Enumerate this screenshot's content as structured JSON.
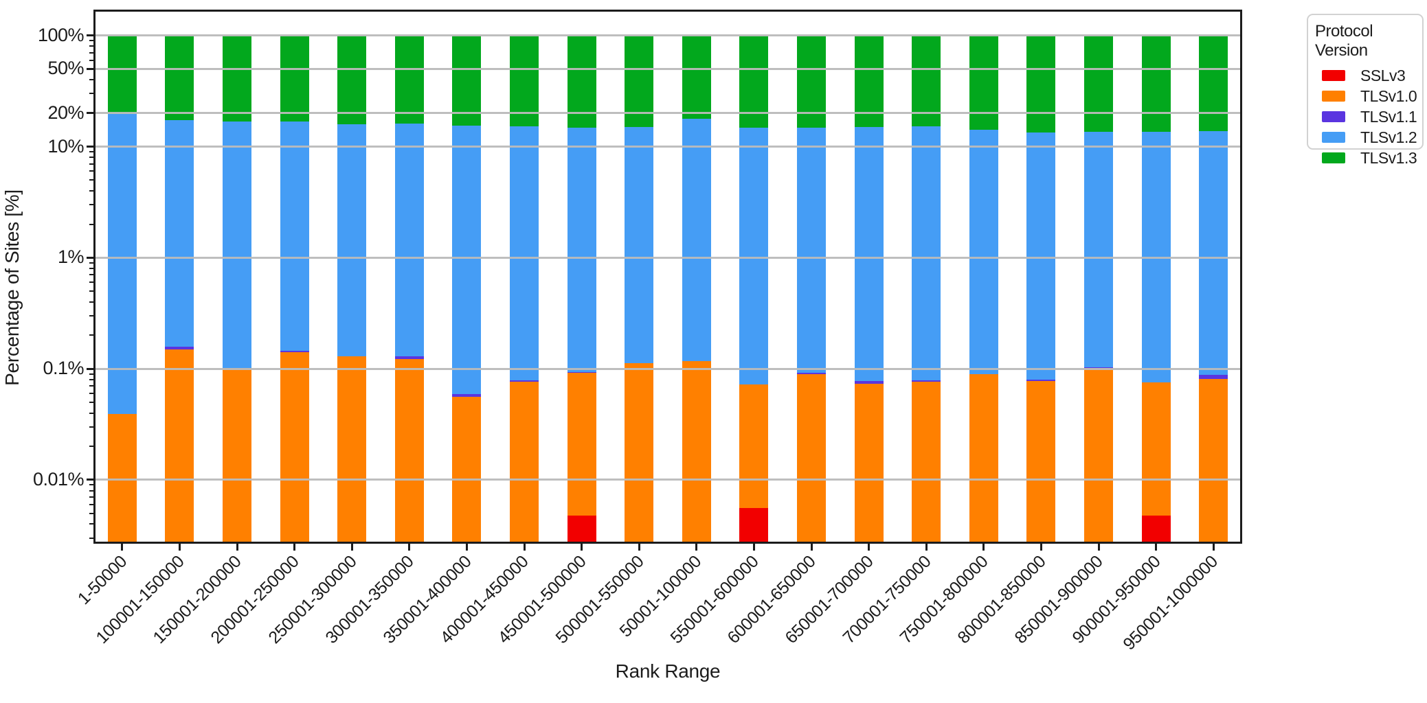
{
  "chart_data": {
    "type": "bar",
    "stacked": true,
    "y_scale": "log",
    "title": "",
    "xlabel": "Rank Range",
    "ylabel": "Percentage of Sites [%]",
    "legend_title": "Protocol Version",
    "legend_position": "outside-upper-right",
    "grid": true,
    "ylim": [
      0.00266,
      171
    ],
    "y_ticks": [
      {
        "label": "100%",
        "value": 100
      },
      {
        "label": "50%",
        "value": 50
      },
      {
        "label": "20%",
        "value": 20
      },
      {
        "label": "10%",
        "value": 10
      },
      {
        "label": "1%",
        "value": 1
      },
      {
        "label": "0.1%",
        "value": 0.1
      },
      {
        "label": "0.01%",
        "value": 0.01
      }
    ],
    "categories": [
      "1-50000",
      "100001-150000",
      "150001-200000",
      "200001-250000",
      "250001-300000",
      "300001-350000",
      "350001-400000",
      "400001-450000",
      "450001-500000",
      "500001-550000",
      "50001-100000",
      "550001-600000",
      "600001-650000",
      "650001-700000",
      "700001-750000",
      "750001-800000",
      "800001-850000",
      "850001-900000",
      "900001-950000",
      "950001-1000000"
    ],
    "series": [
      {
        "name": "SSLv3",
        "color": "#f20000",
        "values": [
          0,
          0,
          0,
          0,
          0,
          0,
          0,
          0,
          0.0048,
          0,
          0,
          0.0056,
          0,
          0,
          0,
          0,
          0,
          0,
          0.0048,
          0
        ]
      },
      {
        "name": "TLSv1.0",
        "color": "#ff8000",
        "values": [
          0.039,
          0.15,
          0.101,
          0.14,
          0.13,
          0.123,
          0.056,
          0.076,
          0.087,
          0.112,
          0.117,
          0.067,
          0.089,
          0.073,
          0.076,
          0.09,
          0.078,
          0.101,
          0.071,
          0.081
        ]
      },
      {
        "name": "TLSv1.1",
        "color": "#5a35e0",
        "values": [
          0,
          0.009,
          0,
          0.005,
          0,
          0.006,
          0.003,
          0.003,
          0.002,
          0,
          0,
          0,
          0.003,
          0.005,
          0.003,
          0,
          0.002,
          0.002,
          0,
          0.007
        ]
      },
      {
        "name": "TLSv1.2",
        "color": "#459df5",
        "values": [
          19.76,
          17.14,
          16.8,
          16.76,
          15.72,
          15.97,
          15.44,
          15.17,
          14.71,
          14.89,
          17.68,
          14.63,
          14.61,
          14.92,
          15.17,
          14.11,
          13.32,
          13.4,
          13.42,
          13.61
        ]
      },
      {
        "name": "TLSv1.3",
        "color": "#02a81d",
        "values": [
          80.2,
          82.7,
          83.1,
          83.1,
          84.15,
          83.9,
          84.5,
          84.75,
          85.2,
          85.0,
          82.2,
          85.3,
          85.3,
          85.0,
          84.75,
          85.8,
          86.6,
          86.5,
          86.5,
          86.3
        ]
      }
    ]
  }
}
